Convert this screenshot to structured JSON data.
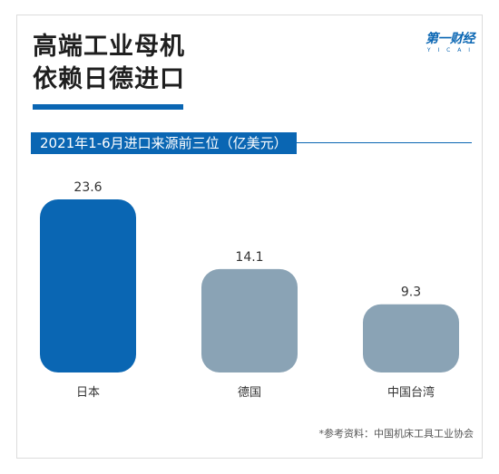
{
  "header": {
    "title_line1": "高端工业母机",
    "title_line2": "依赖日德进口",
    "subtitle": "2021年1-6月进口来源前三位（亿美元）",
    "logo_main": "第一财经",
    "logo_sub": "Y I C A I",
    "source": "*参考资料：中国机床工具工业协会"
  },
  "colors": {
    "accent": "#0a66b3",
    "bar_primary": "#0a66b3",
    "bar_secondary": "#8aa3b5"
  },
  "chart_data": {
    "type": "bar",
    "title": "2021年1-6月进口来源前三位（亿美元）",
    "categories": [
      "日本",
      "德国",
      "中国台湾"
    ],
    "values": [
      23.6,
      14.1,
      9.3
    ],
    "value_labels": [
      "23.6",
      "14.1",
      "9.3"
    ],
    "highlight_index": 0,
    "xlabel": "",
    "ylabel": "",
    "ylim": [
      0,
      23.6
    ],
    "grid": false,
    "legend": "none"
  }
}
